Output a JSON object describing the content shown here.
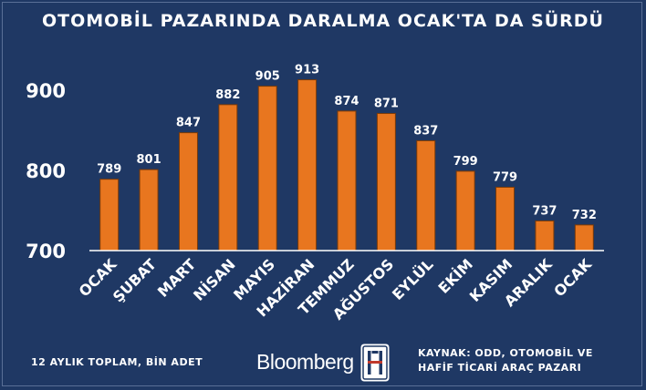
{
  "chart_data": {
    "type": "bar",
    "title": "OTOMOBİL PAZARINDA DARALMA OCAK'TA DA SÜRDÜ",
    "categories": [
      "OCAK",
      "ŞUBAT",
      "MART",
      "NİSAN",
      "MAYIS",
      "HAZİRAN",
      "TEMMUZ",
      "AĞUSTOS",
      "EYLÜL",
      "EKİM",
      "KASIM",
      "ARALIK",
      "OCAK"
    ],
    "values": [
      789,
      801,
      847,
      882,
      905,
      913,
      874,
      871,
      837,
      799,
      779,
      737,
      732
    ],
    "value_labels": [
      "789",
      "801",
      "847",
      "882",
      "905",
      "913",
      "874",
      "871",
      "837",
      "799",
      "779",
      "737",
      "732"
    ],
    "yticks": [
      "700",
      "800",
      "900"
    ],
    "ylim": [
      700,
      950
    ],
    "xlabel": "",
    "ylabel": "",
    "bar_color": "#e8761f",
    "bar_edge_color": "#7a3a08"
  },
  "footer": {
    "note": "12 AYLIK TOPLAM, BİN ADET",
    "logo": "Bloomberg",
    "source_line1": "KAYNAK: ODD, OTOMOBİL VE",
    "source_line2": "HAFİF TİCARİ ARAÇ PAZARI"
  },
  "colors": {
    "background": "#1f3864",
    "text": "#ffffff"
  }
}
